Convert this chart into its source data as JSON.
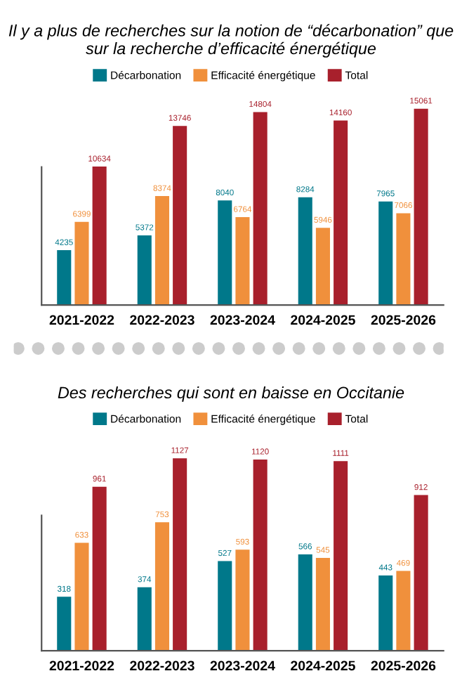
{
  "chart_data": [
    {
      "type": "bar",
      "title": "Il y a plus de recherches sur la notion de “décarbonation” que sur la recherche d’efficacité énergétique",
      "categories": [
        "2021-2022",
        "2022-2023",
        "2023-2024",
        "2024-2025",
        "2025-2026"
      ],
      "series": [
        {
          "name": "Décarbonation",
          "color": "#00788a",
          "values": [
            4235,
            5372,
            8040,
            8284,
            7965
          ]
        },
        {
          "name": "Efficacité énergétique",
          "color": "#f0903c",
          "values": [
            6399,
            8374,
            6764,
            5946,
            7066
          ]
        },
        {
          "name": "Total",
          "color": "#a8202c",
          "values": [
            10634,
            13746,
            14804,
            14160,
            15061
          ]
        }
      ],
      "data_labels": true,
      "legend": "top",
      "grid": false,
      "tick_labels": "x"
    },
    {
      "type": "bar",
      "title": "Des recherches qui sont en baisse en Occitanie",
      "categories": [
        "2021-2022",
        "2022-2023",
        "2023-2024",
        "2024-2025",
        "2025-2026"
      ],
      "series": [
        {
          "name": "Décarbonation",
          "color": "#00788a",
          "values": [
            318,
            374,
            527,
            566,
            443
          ]
        },
        {
          "name": "Efficacité énergétique",
          "color": "#f0903c",
          "values": [
            633,
            753,
            593,
            545,
            469
          ]
        },
        {
          "name": "Total",
          "color": "#a8202c",
          "values": [
            961,
            1127,
            1120,
            1111,
            912
          ]
        }
      ],
      "data_labels": true,
      "legend": "top",
      "grid": false,
      "tick_labels": "x"
    }
  ]
}
